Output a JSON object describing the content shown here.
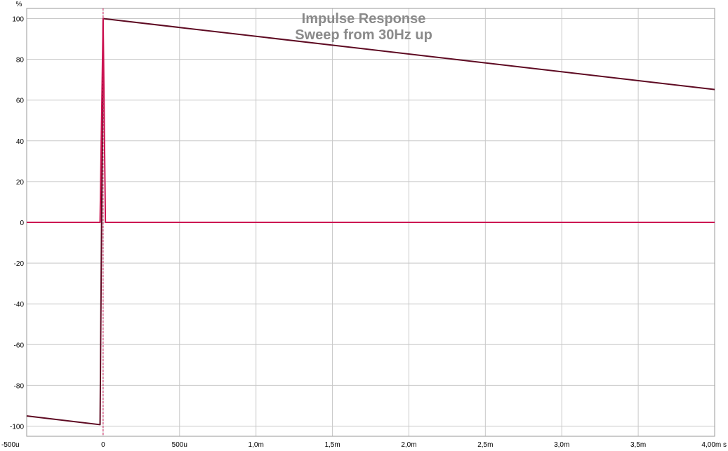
{
  "chart_data": {
    "type": "line",
    "title": "Impulse Response",
    "subtitle": "Sweep from 30Hz up",
    "ylabel": "%",
    "xlabel_unit": "s",
    "xlim": [
      -0.0005,
      0.004
    ],
    "ylim": [
      -105,
      105
    ],
    "grid": true,
    "x_ticks": [
      {
        "value": -0.0005,
        "label": "-500u"
      },
      {
        "value": 0,
        "label": "0"
      },
      {
        "value": 0.0005,
        "label": "500u"
      },
      {
        "value": 0.001,
        "label": "1,0m"
      },
      {
        "value": 0.0015,
        "label": "1,5m"
      },
      {
        "value": 0.002,
        "label": "2,0m"
      },
      {
        "value": 0.0025,
        "label": "2,5m"
      },
      {
        "value": 0.003,
        "label": "3,0m"
      },
      {
        "value": 0.0035,
        "label": "3,5m"
      },
      {
        "value": 0.004,
        "label": "4,00m s"
      }
    ],
    "y_ticks": [
      {
        "value": 100,
        "label": "100"
      },
      {
        "value": 80,
        "label": "80"
      },
      {
        "value": 60,
        "label": "60"
      },
      {
        "value": 40,
        "label": "40"
      },
      {
        "value": 20,
        "label": "20"
      },
      {
        "value": 0,
        "label": "0"
      },
      {
        "value": -20,
        "label": "-20"
      },
      {
        "value": -40,
        "label": "-40"
      },
      {
        "value": -60,
        "label": "-60"
      },
      {
        "value": -80,
        "label": "-80"
      },
      {
        "value": -100,
        "label": "-100"
      }
    ],
    "marker_x": 0,
    "series": [
      {
        "color": "#5e0a22",
        "points": [
          [
            -0.0005,
            -95.0
          ],
          [
            -2e-05,
            -99.3
          ],
          [
            0.0,
            100.0
          ],
          [
            0.004,
            65.2
          ]
        ]
      },
      {
        "color": "#cc1452",
        "points": [
          [
            -0.0005,
            0
          ],
          [
            -2e-05,
            0
          ],
          [
            0.0,
            100.0
          ],
          [
            1.5e-05,
            0
          ],
          [
            0.004,
            0
          ]
        ]
      }
    ]
  }
}
